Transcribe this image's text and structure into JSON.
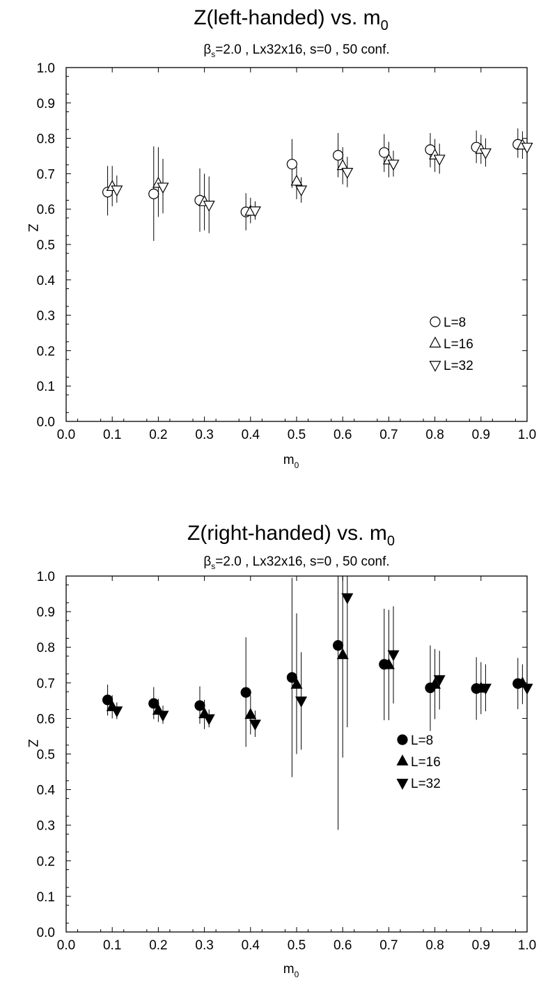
{
  "chart_data": [
    {
      "type": "scatter",
      "title": "Z(left-handed) vs. m",
      "title_sub": "0",
      "subtitle_parts": [
        "β",
        "s",
        "=2.0 , Lx32x16, s=0 , 50 conf."
      ],
      "xlabel": "m",
      "xlabel_sub": "0",
      "ylabel": "Z",
      "xlim": [
        0.0,
        1.0
      ],
      "ylim": [
        0.0,
        1.0
      ],
      "xticks": [
        "0.0",
        "0.1",
        "0.2",
        "0.3",
        "0.4",
        "0.5",
        "0.6",
        "0.7",
        "0.8",
        "0.9",
        "1.0"
      ],
      "yticks": [
        "0.0",
        "0.1",
        "0.2",
        "0.3",
        "0.4",
        "0.5",
        "0.6",
        "0.7",
        "0.8",
        "0.9",
        "1.0"
      ],
      "grid": false,
      "legend_position": "lower-right",
      "series": [
        {
          "name": "L=8",
          "marker": "circle",
          "filled": false,
          "points": [
            {
              "x": 0.09,
              "y": 0.648,
              "lo": 0.582,
              "hi": 0.722
            },
            {
              "x": 0.19,
              "y": 0.643,
              "lo": 0.51,
              "hi": 0.777
            },
            {
              "x": 0.29,
              "y": 0.625,
              "lo": 0.536,
              "hi": 0.715
            },
            {
              "x": 0.39,
              "y": 0.592,
              "lo": 0.54,
              "hi": 0.645
            },
            {
              "x": 0.49,
              "y": 0.727,
              "lo": 0.66,
              "hi": 0.798
            },
            {
              "x": 0.59,
              "y": 0.752,
              "lo": 0.69,
              "hi": 0.815
            },
            {
              "x": 0.69,
              "y": 0.76,
              "lo": 0.705,
              "hi": 0.812
            },
            {
              "x": 0.79,
              "y": 0.768,
              "lo": 0.718,
              "hi": 0.815
            },
            {
              "x": 0.89,
              "y": 0.775,
              "lo": 0.73,
              "hi": 0.822
            },
            {
              "x": 0.98,
              "y": 0.783,
              "lo": 0.745,
              "hi": 0.828
            }
          ]
        },
        {
          "name": "L=16",
          "marker": "triangle-up",
          "filled": false,
          "points": [
            {
              "x": 0.1,
              "y": 0.663,
              "lo": 0.608,
              "hi": 0.722
            },
            {
              "x": 0.2,
              "y": 0.672,
              "lo": 0.578,
              "hi": 0.775
            },
            {
              "x": 0.3,
              "y": 0.62,
              "lo": 0.54,
              "hi": 0.7
            },
            {
              "x": 0.4,
              "y": 0.593,
              "lo": 0.56,
              "hi": 0.632
            },
            {
              "x": 0.5,
              "y": 0.678,
              "lo": 0.628,
              "hi": 0.72
            },
            {
              "x": 0.6,
              "y": 0.722,
              "lo": 0.67,
              "hi": 0.775
            },
            {
              "x": 0.7,
              "y": 0.738,
              "lo": 0.69,
              "hi": 0.79
            },
            {
              "x": 0.8,
              "y": 0.752,
              "lo": 0.705,
              "hi": 0.798
            },
            {
              "x": 0.9,
              "y": 0.768,
              "lo": 0.728,
              "hi": 0.81
            },
            {
              "x": 0.99,
              "y": 0.78,
              "lo": 0.742,
              "hi": 0.82
            }
          ]
        },
        {
          "name": "L=32",
          "marker": "triangle-down",
          "filled": false,
          "points": [
            {
              "x": 0.11,
              "y": 0.655,
              "lo": 0.618,
              "hi": 0.695
            },
            {
              "x": 0.21,
              "y": 0.663,
              "lo": 0.588,
              "hi": 0.742
            },
            {
              "x": 0.31,
              "y": 0.612,
              "lo": 0.532,
              "hi": 0.692
            },
            {
              "x": 0.41,
              "y": 0.596,
              "lo": 0.57,
              "hi": 0.622
            },
            {
              "x": 0.51,
              "y": 0.655,
              "lo": 0.618,
              "hi": 0.69
            },
            {
              "x": 0.61,
              "y": 0.705,
              "lo": 0.662,
              "hi": 0.748
            },
            {
              "x": 0.71,
              "y": 0.728,
              "lo": 0.692,
              "hi": 0.765
            },
            {
              "x": 0.81,
              "y": 0.742,
              "lo": 0.7,
              "hi": 0.785
            },
            {
              "x": 0.91,
              "y": 0.76,
              "lo": 0.72,
              "hi": 0.8
            },
            {
              "x": 1.0,
              "y": 0.776,
              "lo": 0.74,
              "hi": 0.812
            }
          ]
        }
      ]
    },
    {
      "type": "scatter",
      "title": "Z(right-handed) vs. m",
      "title_sub": "0",
      "subtitle_parts": [
        "β",
        "s",
        "=2.0 , Lx32x16, s=0 , 50 conf."
      ],
      "xlabel": "m",
      "xlabel_sub": "0",
      "ylabel": "Z",
      "xlim": [
        0.0,
        1.0
      ],
      "ylim": [
        0.0,
        1.0
      ],
      "xticks": [
        "0.0",
        "0.1",
        "0.2",
        "0.3",
        "0.4",
        "0.5",
        "0.6",
        "0.7",
        "0.8",
        "0.9",
        "1.0"
      ],
      "yticks": [
        "0.0",
        "0.1",
        "0.2",
        "0.3",
        "0.4",
        "0.5",
        "0.6",
        "0.7",
        "0.8",
        "0.9",
        "1.0"
      ],
      "grid": false,
      "legend_position": "lower-right",
      "series": [
        {
          "name": "L=8",
          "marker": "circle",
          "filled": true,
          "points": [
            {
              "x": 0.09,
              "y": 0.652,
              "lo": 0.608,
              "hi": 0.695
            },
            {
              "x": 0.19,
              "y": 0.642,
              "lo": 0.598,
              "hi": 0.688
            },
            {
              "x": 0.29,
              "y": 0.636,
              "lo": 0.585,
              "hi": 0.69
            },
            {
              "x": 0.39,
              "y": 0.673,
              "lo": 0.52,
              "hi": 0.828
            },
            {
              "x": 0.49,
              "y": 0.715,
              "lo": 0.435,
              "hi": 0.995
            },
            {
              "x": 0.59,
              "y": 0.805,
              "lo": 0.287,
              "hi": 1.0
            },
            {
              "x": 0.69,
              "y": 0.752,
              "lo": 0.595,
              "hi": 0.908
            },
            {
              "x": 0.79,
              "y": 0.686,
              "lo": 0.565,
              "hi": 0.805
            },
            {
              "x": 0.89,
              "y": 0.684,
              "lo": 0.596,
              "hi": 0.772
            },
            {
              "x": 0.98,
              "y": 0.698,
              "lo": 0.626,
              "hi": 0.77
            }
          ]
        },
        {
          "name": "L=16",
          "marker": "triangle-up",
          "filled": true,
          "points": [
            {
              "x": 0.1,
              "y": 0.632,
              "lo": 0.6,
              "hi": 0.665
            },
            {
              "x": 0.2,
              "y": 0.622,
              "lo": 0.59,
              "hi": 0.655
            },
            {
              "x": 0.3,
              "y": 0.612,
              "lo": 0.57,
              "hi": 0.652
            },
            {
              "x": 0.4,
              "y": 0.61,
              "lo": 0.555,
              "hi": 0.665
            },
            {
              "x": 0.5,
              "y": 0.695,
              "lo": 0.5,
              "hi": 0.895
            },
            {
              "x": 0.6,
              "y": 0.778,
              "lo": 0.49,
              "hi": 1.0
            },
            {
              "x": 0.7,
              "y": 0.75,
              "lo": 0.595,
              "hi": 0.905
            },
            {
              "x": 0.8,
              "y": 0.695,
              "lo": 0.598,
              "hi": 0.795
            },
            {
              "x": 0.9,
              "y": 0.684,
              "lo": 0.612,
              "hi": 0.758
            },
            {
              "x": 0.99,
              "y": 0.698,
              "lo": 0.64,
              "hi": 0.752
            }
          ]
        },
        {
          "name": "L=32",
          "marker": "triangle-down",
          "filled": true,
          "points": [
            {
              "x": 0.11,
              "y": 0.622,
              "lo": 0.598,
              "hi": 0.645
            },
            {
              "x": 0.21,
              "y": 0.61,
              "lo": 0.585,
              "hi": 0.636
            },
            {
              "x": 0.31,
              "y": 0.6,
              "lo": 0.575,
              "hi": 0.625
            },
            {
              "x": 0.41,
              "y": 0.585,
              "lo": 0.548,
              "hi": 0.622
            },
            {
              "x": 0.51,
              "y": 0.65,
              "lo": 0.512,
              "hi": 0.786
            },
            {
              "x": 0.61,
              "y": 0.94,
              "lo": 0.575,
              "hi": 1.0
            },
            {
              "x": 0.71,
              "y": 0.78,
              "lo": 0.642,
              "hi": 0.915
            },
            {
              "x": 0.81,
              "y": 0.71,
              "lo": 0.625,
              "hi": 0.79
            },
            {
              "x": 0.91,
              "y": 0.686,
              "lo": 0.62,
              "hi": 0.752
            },
            {
              "x": 1.0,
              "y": 0.686,
              "lo": 0.63,
              "hi": 0.742
            }
          ]
        }
      ]
    }
  ]
}
